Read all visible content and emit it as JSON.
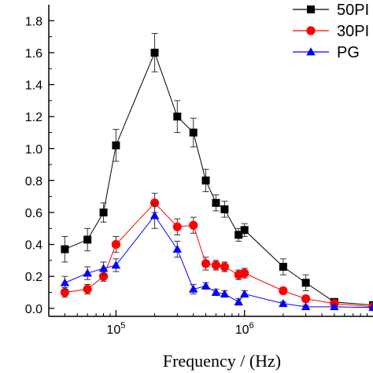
{
  "chart_data": {
    "type": "line",
    "title": "",
    "xlabel": "Frequency / (Hz)",
    "ylabel": "",
    "x_scale": "log",
    "xlim": [
      30000,
      10000000
    ],
    "ylim": [
      -0.05,
      1.9
    ],
    "x_tick_labels": [
      {
        "value": 100000,
        "base": "10",
        "exp": "5"
      },
      {
        "value": 1000000,
        "base": "10",
        "exp": "6"
      }
    ],
    "y_ticks": [
      {
        "value": 0.0,
        "label": "0.0"
      },
      {
        "value": 0.2,
        "label": "0.2"
      },
      {
        "value": 0.4,
        "label": "0.4"
      },
      {
        "value": 0.6,
        "label": "0.6"
      },
      {
        "value": 0.8,
        "label": "0.8"
      },
      {
        "value": 1.0,
        "label": "1.0"
      },
      {
        "value": 1.2,
        "label": "1.2"
      },
      {
        "value": 1.4,
        "label": "1.4"
      },
      {
        "value": 1.6,
        "label": "1.6"
      },
      {
        "value": 1.8,
        "label": "1.8"
      }
    ],
    "grid": false,
    "legend_position": "top-right",
    "series": [
      {
        "name": "50PI",
        "color": "#000000",
        "marker": "square",
        "x": [
          40000,
          60000,
          80000,
          100000,
          200000,
          300000,
          400000,
          500000,
          600000,
          700000,
          900000,
          1000000,
          2000000,
          3000000,
          5000000,
          10000000
        ],
        "y": [
          0.37,
          0.43,
          0.6,
          1.02,
          1.6,
          1.2,
          1.1,
          0.8,
          0.66,
          0.62,
          0.46,
          0.49,
          0.26,
          0.16,
          0.04,
          0.02
        ],
        "err": [
          0.08,
          0.07,
          0.06,
          0.1,
          0.12,
          0.1,
          0.09,
          0.07,
          0.05,
          0.05,
          0.04,
          0.04,
          0.05,
          0.05,
          0.02,
          0.02
        ]
      },
      {
        "name": "30PI",
        "color": "#ff0000",
        "marker": "circle",
        "x": [
          40000,
          60000,
          80000,
          100000,
          200000,
          300000,
          400000,
          500000,
          600000,
          700000,
          900000,
          1000000,
          2000000,
          3000000,
          5000000,
          10000000
        ],
        "y": [
          0.1,
          0.12,
          0.2,
          0.4,
          0.66,
          0.51,
          0.52,
          0.28,
          0.27,
          0.26,
          0.21,
          0.22,
          0.11,
          0.06,
          0.03,
          0.01
        ],
        "err": [
          0.03,
          0.03,
          0.03,
          0.05,
          0.06,
          0.05,
          0.05,
          0.04,
          0.03,
          0.03,
          0.03,
          0.03,
          0.02,
          0.02,
          0.01,
          0.01
        ]
      },
      {
        "name": "PG",
        "color": "#0000ff",
        "marker": "triangle",
        "x": [
          40000,
          60000,
          80000,
          100000,
          200000,
          300000,
          400000,
          500000,
          600000,
          700000,
          900000,
          1000000,
          2000000,
          3000000,
          5000000,
          10000000
        ],
        "y": [
          0.16,
          0.22,
          0.25,
          0.27,
          0.58,
          0.37,
          0.12,
          0.14,
          0.1,
          0.09,
          0.04,
          0.09,
          0.03,
          0.01,
          0.01,
          0.005
        ],
        "err": [
          0.04,
          0.04,
          0.04,
          0.04,
          0.08,
          0.05,
          0.03,
          0.02,
          0.02,
          0.02,
          0.02,
          0.02,
          0.01,
          0.01,
          0.01,
          0.005
        ]
      }
    ]
  }
}
